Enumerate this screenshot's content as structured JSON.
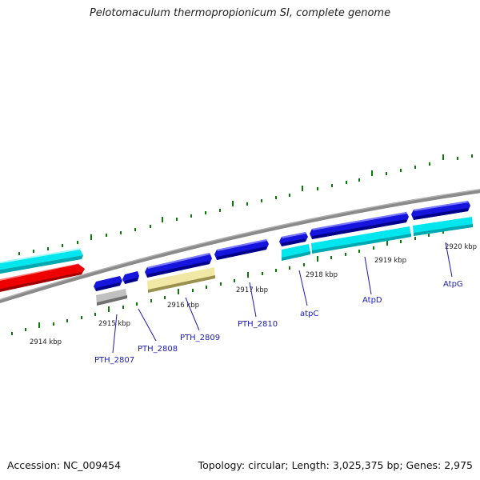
{
  "title": "Pelotomaculum thermopropionicum SI, complete genome",
  "accession": "Accession: NC_009454",
  "summary": "Topology: circular; Length: 3,025,375 bp; Genes: 2,975",
  "colors": {
    "backbone": "#808080",
    "cyan": "#00e6ee",
    "red": "#ee0000",
    "blue": "#1515dd",
    "gray": "#b8b8b8",
    "khaki": "#f0e6a0",
    "tick": "#0b7a0b",
    "label": "#1a1ab8"
  },
  "kbp_labels": [
    "2914 kbp",
    "2915 kbp",
    "2916 kbp",
    "2917 kbp",
    "2918 kbp",
    "2919 kbp",
    "2920 kbp"
  ],
  "gene_labels": [
    "PTH_2807",
    "PTH_2808",
    "PTH_2809",
    "PTH_2810",
    "atpC",
    "AtpD",
    "AtpG"
  ]
}
